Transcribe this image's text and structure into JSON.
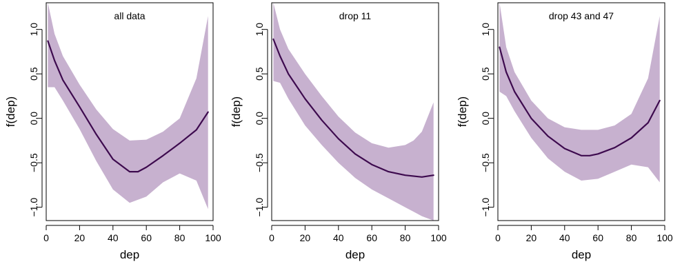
{
  "colors": {
    "band": "#c7b1cf",
    "line": "#3d0a4e"
  },
  "chart_data": [
    {
      "type": "line",
      "title": "all data",
      "xlabel": "dep",
      "ylabel": "f(dep)",
      "xlim": [
        0,
        100
      ],
      "ylim": [
        -1.15,
        1.3
      ],
      "xticks": [
        "0",
        "20",
        "40",
        "60",
        "80",
        "100"
      ],
      "yticks": [
        "−1.0",
        "−0.5",
        "0.0",
        "0.5",
        "1.0"
      ],
      "series": [
        {
          "x": [
            1,
            5,
            10,
            20,
            30,
            40,
            50,
            55,
            60,
            70,
            80,
            90,
            97
          ],
          "y": [
            0.87,
            0.65,
            0.43,
            0.13,
            -0.18,
            -0.46,
            -0.6,
            -0.6,
            -0.55,
            -0.42,
            -0.28,
            -0.13,
            0.07
          ]
        }
      ],
      "band": {
        "x": [
          1,
          5,
          10,
          20,
          30,
          40,
          50,
          60,
          70,
          80,
          90,
          97
        ],
        "upper": [
          1.3,
          0.95,
          0.7,
          0.38,
          0.1,
          -0.12,
          -0.25,
          -0.24,
          -0.15,
          0.0,
          0.45,
          1.15
        ],
        "lower": [
          0.35,
          0.35,
          0.2,
          -0.12,
          -0.48,
          -0.8,
          -0.95,
          -0.88,
          -0.72,
          -0.62,
          -0.7,
          -1.02
        ]
      }
    },
    {
      "type": "line",
      "title": "drop 11",
      "xlabel": "dep",
      "ylabel": "f(dep)",
      "xlim": [
        0,
        100
      ],
      "ylim": [
        -1.15,
        1.3
      ],
      "xticks": [
        "0",
        "20",
        "40",
        "60",
        "80",
        "100"
      ],
      "yticks": [
        "−1.0",
        "−0.5",
        "0.0",
        "0.5",
        "1.0"
      ],
      "series": [
        {
          "x": [
            1,
            5,
            10,
            20,
            30,
            40,
            50,
            60,
            70,
            80,
            90,
            97
          ],
          "y": [
            0.89,
            0.7,
            0.5,
            0.22,
            -0.02,
            -0.23,
            -0.4,
            -0.52,
            -0.6,
            -0.64,
            -0.66,
            -0.64
          ]
        }
      ],
      "band": {
        "x": [
          1,
          5,
          10,
          20,
          30,
          40,
          50,
          60,
          70,
          80,
          85,
          90,
          97
        ],
        "upper": [
          1.3,
          1.0,
          0.78,
          0.5,
          0.25,
          0.02,
          -0.16,
          -0.28,
          -0.33,
          -0.3,
          -0.25,
          -0.15,
          0.18
        ],
        "lower": [
          0.42,
          0.4,
          0.22,
          -0.08,
          -0.3,
          -0.5,
          -0.67,
          -0.8,
          -0.9,
          -1.0,
          -1.05,
          -1.1,
          -1.15
        ]
      }
    },
    {
      "type": "line",
      "title": "drop 43 and 47",
      "xlabel": "dep",
      "ylabel": "f(dep)",
      "xlim": [
        0,
        100
      ],
      "ylim": [
        -1.15,
        1.3
      ],
      "xticks": [
        "0",
        "20",
        "40",
        "60",
        "80",
        "100"
      ],
      "yticks": [
        "−1.0",
        "−0.5",
        "0.0",
        "0.5",
        "1.0"
      ],
      "series": [
        {
          "x": [
            1,
            5,
            10,
            20,
            30,
            40,
            50,
            55,
            60,
            70,
            80,
            90,
            97
          ],
          "y": [
            0.8,
            0.52,
            0.3,
            0.0,
            -0.2,
            -0.34,
            -0.42,
            -0.42,
            -0.4,
            -0.33,
            -0.22,
            -0.05,
            0.2
          ]
        }
      ],
      "band": {
        "x": [
          1,
          5,
          10,
          20,
          30,
          40,
          50,
          60,
          70,
          80,
          90,
          97
        ],
        "upper": [
          1.3,
          0.8,
          0.52,
          0.2,
          0.0,
          -0.1,
          -0.13,
          -0.13,
          -0.08,
          0.05,
          0.45,
          1.15
        ],
        "lower": [
          0.3,
          0.25,
          0.08,
          -0.22,
          -0.45,
          -0.6,
          -0.7,
          -0.68,
          -0.6,
          -0.52,
          -0.55,
          -0.72
        ]
      }
    }
  ]
}
